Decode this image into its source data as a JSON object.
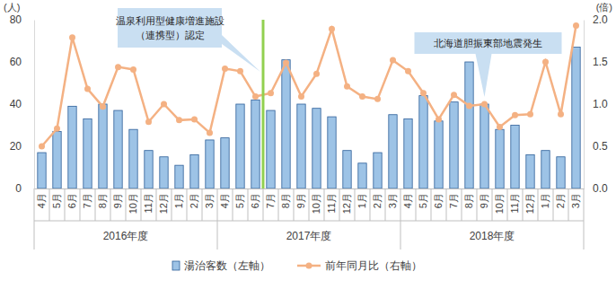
{
  "chart_data": {
    "type": "bar",
    "categories": [
      "4月",
      "5月",
      "6月",
      "7月",
      "8月",
      "9月",
      "10月",
      "11月",
      "12月",
      "1月",
      "2月",
      "3月",
      "4月",
      "5月",
      "6月",
      "7月",
      "8月",
      "9月",
      "10月",
      "11月",
      "12月",
      "1月",
      "2月",
      "3月",
      "4月",
      "5月",
      "6月",
      "7月",
      "8月",
      "9月",
      "10月",
      "11月",
      "12月",
      "1月",
      "2月",
      "3月"
    ],
    "groups": [
      "2016年度",
      "2017年度",
      "2018年度"
    ],
    "series": [
      {
        "name": "湯治客数（左軸）",
        "type": "bar",
        "color": "#9dc3e6",
        "values": [
          17,
          27,
          39,
          33,
          40,
          37,
          28,
          18,
          15,
          11,
          16,
          23,
          24,
          40,
          42,
          37,
          61,
          40,
          38,
          34,
          18,
          12,
          17,
          35,
          33,
          44,
          32,
          41,
          60,
          40,
          28,
          30,
          16,
          18,
          15,
          67
        ]
      },
      {
        "name": "前年同月比（右軸）",
        "type": "line",
        "axis": "y2",
        "color": "#f4b183",
        "marker": "circle",
        "values": [
          0.5,
          0.71,
          1.79,
          1.18,
          0.97,
          1.44,
          1.41,
          0.79,
          1.0,
          0.81,
          0.82,
          0.66,
          1.42,
          1.39,
          1.09,
          1.13,
          1.49,
          1.09,
          1.36,
          1.89,
          1.21,
          1.09,
          1.06,
          1.52,
          1.39,
          1.13,
          0.82,
          1.11,
          0.98,
          1.0,
          0.73,
          0.87,
          0.88,
          1.5,
          0.88,
          1.93
        ]
      }
    ],
    "ylabel": "(人)",
    "y2label": "(倍)",
    "ylim": [
      0,
      80
    ],
    "yticks": [
      0,
      20,
      40,
      60,
      80
    ],
    "y2lim": [
      0,
      2
    ],
    "y2ticks": [
      {
        "value": 0,
        "label": "0.0"
      },
      {
        "value": 0.5,
        "label": "0.5"
      },
      {
        "value": 1,
        "label": "1.0"
      },
      {
        "value": 1.5,
        "label": "1.5"
      },
      {
        "value": 2,
        "label": "2.0"
      }
    ],
    "grid": false,
    "legend": "bottom",
    "annotations": [
      {
        "type": "vline",
        "x": 14.5,
        "lines": [
          "温泉利用型健康増進施設",
          "（連携型）認定"
        ]
      },
      {
        "type": "point",
        "x": 29,
        "lines": [
          "北海道胆振東部地震発生"
        ]
      }
    ]
  }
}
